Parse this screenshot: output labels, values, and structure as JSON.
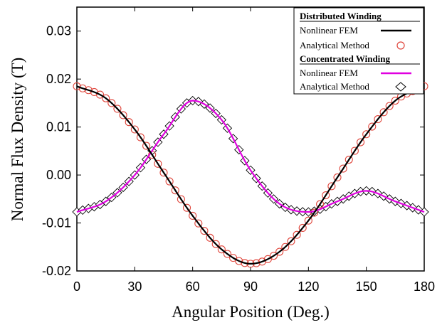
{
  "chart_data": {
    "type": "line",
    "xlabel": "Angular Position (Deg.)",
    "ylabel": "Normal Flux Density (T)",
    "xlim": [
      0,
      180
    ],
    "ylim": [
      -0.02,
      0.035
    ],
    "xticks": [
      "0",
      "30",
      "60",
      "90",
      "120",
      "150",
      "180"
    ],
    "yticks": [
      "-0.02",
      "-0.01",
      "0.00",
      "0.01",
      "0.02",
      "0.03"
    ],
    "grid": false,
    "legend_position": "top-right",
    "legend": {
      "group1_title": "Distributed Winding",
      "group1_fem": "Nonlinear FEM",
      "group1_analytical": "Analytical Method",
      "group2_title": "Concentrated Winding",
      "group2_fem": "Nonlinear FEM",
      "group2_analytical": "Analytical Method"
    },
    "colors": {
      "distributed_fem": "#000000",
      "distributed_analytical": "#e0463c",
      "concentrated_fem": "#e000e0",
      "concentrated_analytical": "#000000"
    },
    "x": [
      0,
      15,
      30,
      45,
      60,
      75,
      90,
      105,
      120,
      135,
      150,
      165,
      180
    ],
    "series": [
      {
        "name": "Distributed Winding - Nonlinear FEM",
        "values": [
          0.0185,
          0.016,
          0.0095,
          0.0005,
          -0.0085,
          -0.0155,
          -0.0185,
          -0.016,
          -0.0095,
          -0.0005,
          0.0085,
          0.0155,
          0.0185
        ]
      },
      {
        "name": "Distributed Winding - Analytical Method",
        "values": [
          0.0185,
          0.016,
          0.0095,
          0.0005,
          -0.0085,
          -0.0155,
          -0.0185,
          -0.016,
          -0.0095,
          -0.0005,
          0.0085,
          0.0155,
          0.0185
        ]
      },
      {
        "name": "Concentrated Winding - Nonlinear FEM",
        "values": [
          -0.0077,
          -0.0055,
          0.0,
          0.0085,
          0.0155,
          0.0115,
          0.001,
          -0.006,
          -0.0077,
          -0.0055,
          -0.0033,
          -0.0055,
          -0.0077
        ]
      },
      {
        "name": "Concentrated Winding - Analytical Method",
        "values": [
          -0.0077,
          -0.0055,
          0.0,
          0.0085,
          0.0155,
          0.0115,
          0.001,
          -0.006,
          -0.0077,
          -0.0055,
          -0.0033,
          -0.0055,
          -0.0077
        ]
      }
    ]
  }
}
